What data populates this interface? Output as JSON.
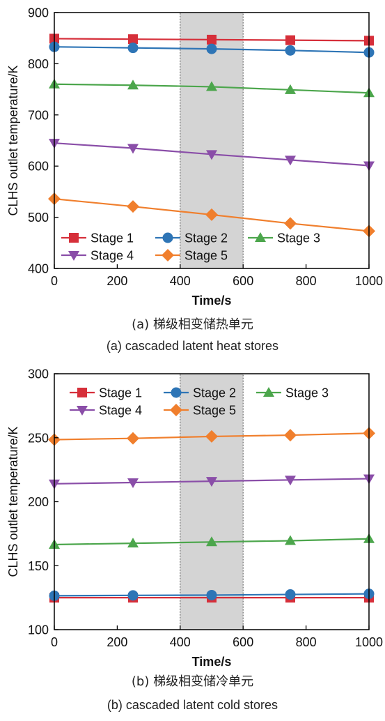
{
  "panels": [
    {
      "caption_zh": "(a) 梯级相变储热单元",
      "caption_en": "(a) cascaded latent heat stores",
      "chart_data": {
        "type": "line",
        "title": "",
        "xlabel": "Time/s",
        "ylabel": "CLHS outlet temperature/K",
        "xlim": [
          0,
          1000
        ],
        "ylim": [
          400,
          900
        ],
        "xticks": [
          0,
          200,
          400,
          600,
          800,
          1000
        ],
        "yticks": [
          400,
          500,
          600,
          700,
          800,
          900
        ],
        "grid": false,
        "legend": "bottom-left, two rows",
        "shaded_region": [
          400,
          600
        ],
        "x": [
          0,
          250,
          500,
          750,
          1000
        ],
        "series": [
          {
            "name": "Stage 1",
            "color": "#d62f3a",
            "marker": "square",
            "values": [
              849,
              848,
              847,
              846,
              845
            ]
          },
          {
            "name": "Stage 2",
            "color": "#2e75b6",
            "marker": "circle",
            "values": [
              833,
              831,
              829,
              826,
              822
            ]
          },
          {
            "name": "Stage 3",
            "color": "#4ca64c",
            "marker": "triangle-up",
            "values": [
              760,
              758,
              755,
              749,
              743
            ]
          },
          {
            "name": "Stage 4",
            "color": "#8a4ea8",
            "marker": "triangle-down",
            "values": [
              645,
              635,
              623,
              612,
              601
            ]
          },
          {
            "name": "Stage 5",
            "color": "#f07f2d",
            "marker": "diamond",
            "values": [
              536,
              521,
              505,
              488,
              473
            ]
          }
        ]
      }
    },
    {
      "caption_zh": "(b) 梯级相变储冷单元",
      "caption_en": "(b) cascaded latent cold stores",
      "chart_data": {
        "type": "line",
        "title": "",
        "xlabel": "Time/s",
        "ylabel": "CLHS outlet temperature/K",
        "xlim": [
          0,
          1000
        ],
        "ylim": [
          100,
          300
        ],
        "xticks": [
          0,
          200,
          400,
          600,
          800,
          1000
        ],
        "yticks": [
          100,
          150,
          200,
          250,
          300
        ],
        "grid": false,
        "legend": "top-left, two rows",
        "shaded_region": [
          400,
          600
        ],
        "x": [
          0,
          250,
          500,
          750,
          1000
        ],
        "series": [
          {
            "name": "Stage 1",
            "color": "#d62f3a",
            "marker": "square",
            "values": [
              125,
              125,
              125,
              125,
              125
            ]
          },
          {
            "name": "Stage 2",
            "color": "#2e75b6",
            "marker": "circle",
            "values": [
              126.5,
              126.8,
              127,
              127.5,
              128
            ]
          },
          {
            "name": "Stage 3",
            "color": "#4ca64c",
            "marker": "triangle-up",
            "values": [
              166.5,
              167.5,
              168.5,
              169.5,
              171
            ]
          },
          {
            "name": "Stage 4",
            "color": "#8a4ea8",
            "marker": "triangle-down",
            "values": [
              214,
              215,
              216,
              217,
              218
            ]
          },
          {
            "name": "Stage 5",
            "color": "#f07f2d",
            "marker": "diamond",
            "values": [
              248.5,
              249.5,
              251,
              252,
              253.5
            ]
          }
        ]
      }
    }
  ]
}
